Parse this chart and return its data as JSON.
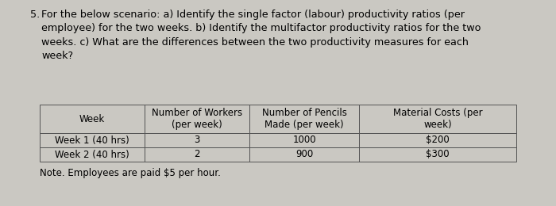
{
  "question_number": "5.",
  "question_lines": [
    "For the below scenario: a) Identify the single factor (labour) productivity ratios (per",
    "employee) for the two weeks. b) Identify the multifactor productivity ratios for the two",
    "weeks. c) What are the differences between the two productivity measures for each",
    "week?"
  ],
  "col_headers": [
    "Week",
    "Number of Workers\n(per week)",
    "Number of Pencils\nMade (per week)",
    "Material Costs (per\nweek)"
  ],
  "rows": [
    [
      "Week 1 (40 hrs)",
      "3",
      "1000",
      "$200"
    ],
    [
      "Week 2 (40 hrs)",
      "2",
      "900",
      "$300"
    ]
  ],
  "note": "Note. Employees are paid $5 per hour.",
  "bg_color": "#cac8c2",
  "text_color": "#000000",
  "font_size": 8.5,
  "question_font_size": 9.2,
  "table_line_color": "#555555"
}
